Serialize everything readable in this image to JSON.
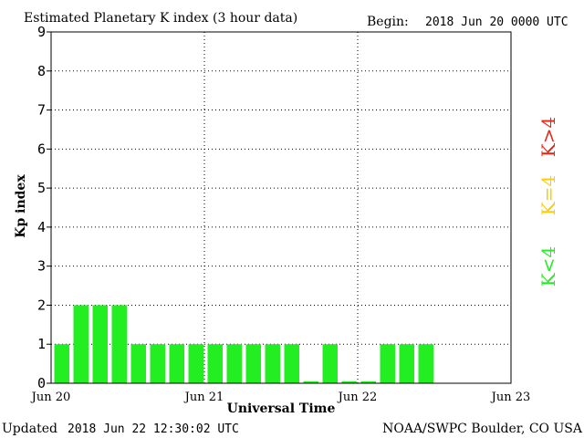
{
  "header": {
    "title": "Estimated Planetary K index (3 hour data)",
    "begin_label": "Begin:",
    "begin_value": "2018 Jun 20 0000 UTC"
  },
  "footer": {
    "updated_label": "Updated",
    "updated_value": "2018 Jun 22 12:30:02 UTC",
    "source": "NOAA/SWPC Boulder, CO USA"
  },
  "legend": [
    {
      "label": "K<4",
      "color": "#22ee22"
    },
    {
      "label": "K=4",
      "color": "#ffcc00"
    },
    {
      "label": "K>4",
      "color": "#ee2211"
    }
  ],
  "chart_data": {
    "type": "bar",
    "title": "Estimated Planetary K index (3 hour data)",
    "xlabel": "Universal Time",
    "ylabel": "Kp index",
    "ylim": [
      0,
      9
    ],
    "yticks": [
      0,
      1,
      2,
      3,
      4,
      5,
      6,
      7,
      8,
      9
    ],
    "xtick_labels": [
      "Jun 20",
      "Jun 21",
      "Jun 22",
      "Jun 23"
    ],
    "interval_hours": 3,
    "grid": true,
    "bar_color": "#22ee22",
    "values": [
      1,
      2,
      2,
      2,
      1,
      1,
      1,
      1,
      1,
      1,
      1,
      1,
      1,
      0.05,
      1,
      0.05,
      0.05,
      1,
      1,
      1
    ]
  }
}
